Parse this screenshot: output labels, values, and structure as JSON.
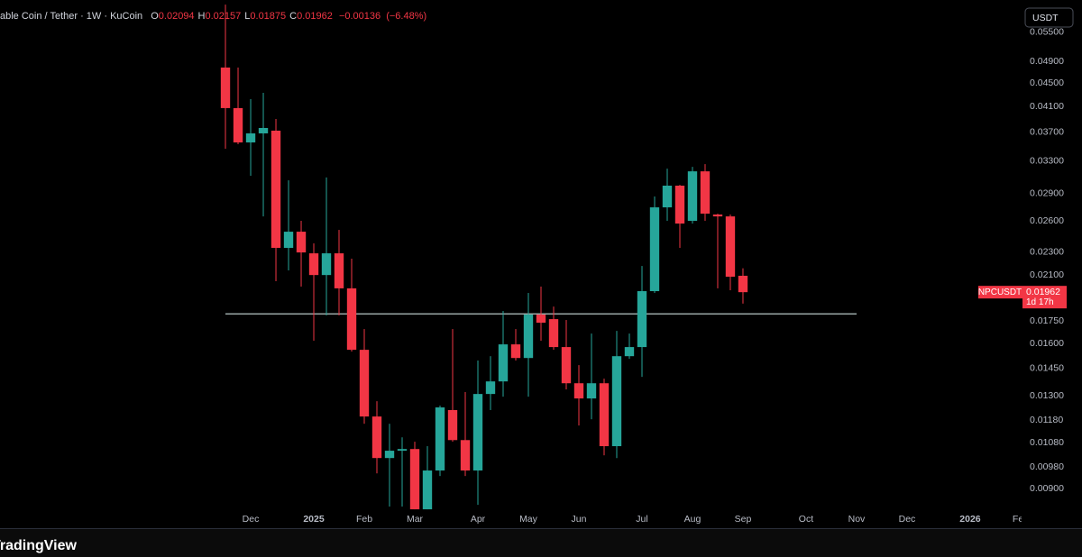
{
  "chart_data": {
    "type": "candlestick",
    "title": "able Coin / Tether · 1W · KuCoin",
    "ohlc": [
      {
        "key": "O",
        "value": 0.02094
      },
      {
        "key": "H",
        "value": 0.02157
      },
      {
        "key": "L",
        "value": 0.01875
      },
      {
        "key": "C",
        "value": 0.01962
      }
    ],
    "change": {
      "value": -0.00136,
      "label": "−0.00136"
    },
    "change_pct": {
      "value": -6.48,
      "label": "(−6.48%)"
    },
    "currency": "USDT",
    "symbol": "NPCUSDT",
    "last_price": 0.01962,
    "countdown": "1d 17h",
    "brand": "TradingView",
    "up_color": "#26a69a",
    "down_color": "#f23645",
    "hline": 0.018,
    "log_scale": true,
    "grid": false,
    "ylim": [
      0.00772,
      0.06254
    ],
    "xlim": [
      -17.86,
      62.86
    ],
    "yticks": [
      {
        "value": 0.055,
        "label": "0.05500"
      },
      {
        "value": 0.049,
        "label": "0.04900"
      },
      {
        "value": 0.045,
        "label": "0.04500"
      },
      {
        "value": 0.041,
        "label": "0.04100"
      },
      {
        "value": 0.037,
        "label": "0.03700"
      },
      {
        "value": 0.033,
        "label": "0.03300"
      },
      {
        "value": 0.029,
        "label": "0.02900"
      },
      {
        "value": 0.026,
        "label": "0.02600"
      },
      {
        "value": 0.023,
        "label": "0.02300"
      },
      {
        "value": 0.021,
        "label": "0.02100"
      },
      {
        "value": 0.0175,
        "label": "0.01750"
      },
      {
        "value": 0.016,
        "label": "0.01600"
      },
      {
        "value": 0.0145,
        "label": "0.01450"
      },
      {
        "value": 0.013,
        "label": "0.01300"
      },
      {
        "value": 0.0118,
        "label": "0.01180"
      },
      {
        "value": 0.0108,
        "label": "0.01080"
      },
      {
        "value": 0.0098,
        "label": "0.00980"
      },
      {
        "value": 0.009,
        "label": "0.00900"
      }
    ],
    "xticks": [
      {
        "value": 2,
        "label": "Dec"
      },
      {
        "value": 7,
        "label": "2025"
      },
      {
        "value": 11,
        "label": "Feb"
      },
      {
        "value": 15,
        "label": "Mar"
      },
      {
        "value": 20,
        "label": "Apr"
      },
      {
        "value": 24,
        "label": "May"
      },
      {
        "value": 28,
        "label": "Jun"
      },
      {
        "value": 33,
        "label": "Jul"
      },
      {
        "value": 37,
        "label": "Aug"
      },
      {
        "value": 41,
        "label": "Sep"
      },
      {
        "value": 46,
        "label": "Oct"
      },
      {
        "value": 50,
        "label": "Nov"
      },
      {
        "value": 54,
        "label": "Dec"
      },
      {
        "value": 59,
        "label": "2026"
      },
      {
        "value": 63,
        "label": "Feb"
      }
    ],
    "candles": [
      {
        "open": 0.04784,
        "high": 0.0614,
        "low": 0.03467,
        "close": 0.04073
      },
      {
        "open": 0.04073,
        "high": 0.04784,
        "low": 0.03529,
        "close": 0.03554
      },
      {
        "open": 0.03554,
        "high": 0.04221,
        "low": 0.03113,
        "close": 0.03684
      },
      {
        "open": 0.03684,
        "high": 0.04328,
        "low": 0.0265,
        "close": 0.03764
      },
      {
        "open": 0.03724,
        "high": 0.03901,
        "low": 0.02049,
        "close": 0.02339
      },
      {
        "open": 0.02339,
        "high": 0.03058,
        "low": 0.02139,
        "close": 0.02494
      },
      {
        "open": 0.02494,
        "high": 0.02604,
        "low": 0.02006,
        "close": 0.02297
      },
      {
        "open": 0.02289,
        "high": 0.02381,
        "low": 0.01618,
        "close": 0.021
      },
      {
        "open": 0.021,
        "high": 0.03093,
        "low": 0.01789,
        "close": 0.02289
      },
      {
        "open": 0.02289,
        "high": 0.02512,
        "low": 0.01789,
        "close": 0.01992
      },
      {
        "open": 0.01992,
        "high": 0.02241,
        "low": 0.0155,
        "close": 0.01561
      },
      {
        "open": 0.01561,
        "high": 0.01695,
        "low": 0.01164,
        "close": 0.01198
      },
      {
        "open": 0.01198,
        "high": 0.01273,
        "low": 0.00956,
        "close": 0.01016
      },
      {
        "open": 0.01016,
        "high": 0.01164,
        "low": 0.00838,
        "close": 0.01046
      },
      {
        "open": 0.01046,
        "high": 0.01103,
        "low": 0.00838,
        "close": 0.01053
      },
      {
        "open": 0.01053,
        "high": 0.01084,
        "low": 0.00829,
        "close": 0.00829
      },
      {
        "open": 0.00829,
        "high": 0.01065,
        "low": 0.00829,
        "close": 0.00967
      },
      {
        "open": 0.00967,
        "high": 0.01251,
        "low": 0.00946,
        "close": 0.01242
      },
      {
        "open": 0.01229,
        "high": 0.01695,
        "low": 0.01084,
        "close": 0.01091
      },
      {
        "open": 0.01091,
        "high": 0.0132,
        "low": 0.00946,
        "close": 0.00967
      },
      {
        "open": 0.00967,
        "high": 0.01496,
        "low": 0.00844,
        "close": 0.0131
      },
      {
        "open": 0.0131,
        "high": 0.01522,
        "low": 0.01229,
        "close": 0.01377
      },
      {
        "open": 0.01377,
        "high": 0.01821,
        "low": 0.01296,
        "close": 0.01595
      },
      {
        "open": 0.01595,
        "high": 0.01695,
        "low": 0.01496,
        "close": 0.01511
      },
      {
        "open": 0.01511,
        "high": 0.01956,
        "low": 0.01296,
        "close": 0.01795
      },
      {
        "open": 0.01795,
        "high": 0.02006,
        "low": 0.01618,
        "close": 0.01738
      },
      {
        "open": 0.01763,
        "high": 0.01853,
        "low": 0.01561,
        "close": 0.01578
      },
      {
        "open": 0.01578,
        "high": 0.01757,
        "low": 0.01334,
        "close": 0.01367
      },
      {
        "open": 0.01367,
        "high": 0.01469,
        "low": 0.01156,
        "close": 0.01287
      },
      {
        "open": 0.01287,
        "high": 0.01665,
        "low": 0.01185,
        "close": 0.01367
      },
      {
        "open": 0.01367,
        "high": 0.01392,
        "low": 0.01027,
        "close": 0.01065
      },
      {
        "open": 0.01065,
        "high": 0.01683,
        "low": 0.01016,
        "close": 0.01522
      },
      {
        "open": 0.01522,
        "high": 0.01665,
        "low": 0.01506,
        "close": 0.01578
      },
      {
        "open": 0.01578,
        "high": 0.02177,
        "low": 0.01402,
        "close": 0.0197
      },
      {
        "open": 0.0197,
        "high": 0.02868,
        "low": 0.01956,
        "close": 0.02747
      },
      {
        "open": 0.02747,
        "high": 0.03203,
        "low": 0.02604,
        "close": 0.02994
      },
      {
        "open": 0.02994,
        "high": 0.03004,
        "low": 0.02339,
        "close": 0.02576
      },
      {
        "open": 0.02604,
        "high": 0.03226,
        "low": 0.02576,
        "close": 0.03169
      },
      {
        "open": 0.03169,
        "high": 0.03261,
        "low": 0.02604,
        "close": 0.02679
      },
      {
        "open": 0.0267,
        "high": 0.02679,
        "low": 0.01992,
        "close": 0.0265
      },
      {
        "open": 0.0265,
        "high": 0.0267,
        "low": 0.01977,
        "close": 0.02086
      },
      {
        "open": 0.02094,
        "high": 0.02157,
        "low": 0.01875,
        "close": 0.01962
      }
    ]
  }
}
